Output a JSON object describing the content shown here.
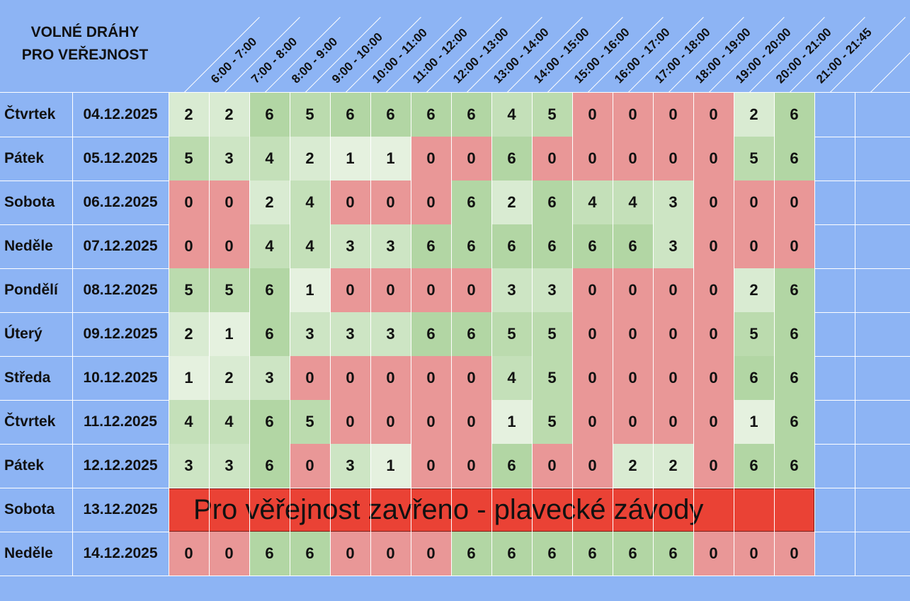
{
  "header": {
    "title_line1": "VOLNÉ DRÁHY",
    "title_line2": "PRO VEŘEJNOST"
  },
  "slots": [
    "6:00 - 7:00",
    "7:00 - 8:00",
    "8:00 - 9:00",
    "9:00 - 10:00",
    "10:00 - 11:00",
    "11:00 - 12:00",
    "12:00 - 13:00",
    "13:00 - 14:00",
    "14:00 - 15:00",
    "15:00 - 16:00",
    "16:00 - 17:00",
    "17:00 - 18:00",
    "18:00 - 19:00",
    "19:00 - 20:00",
    "20:00 - 21:00",
    "21:00 - 21:45"
  ],
  "colors": {
    "background": "#8db4f4",
    "zero": "#e99797",
    "level_1": "#e5f1df",
    "level_2": "#d9ebd2",
    "level_3": "#cde5c4",
    "level_4": "#c4e0b9",
    "level_5": "#bbdbae",
    "level_6": "#b2d6a4",
    "closed_banner": "#ea4235"
  },
  "rows": [
    {
      "day": "Čtvrtek",
      "date": "04.12.2025",
      "values": [
        2,
        2,
        6,
        5,
        6,
        6,
        6,
        6,
        4,
        5,
        0,
        0,
        0,
        0,
        2,
        6
      ]
    },
    {
      "day": "Pátek",
      "date": "05.12.2025",
      "values": [
        5,
        3,
        4,
        2,
        1,
        1,
        0,
        0,
        6,
        0,
        0,
        0,
        0,
        0,
        5,
        6
      ]
    },
    {
      "day": "Sobota",
      "date": "06.12.2025",
      "values": [
        0,
        0,
        2,
        4,
        0,
        0,
        0,
        6,
        2,
        6,
        4,
        4,
        3,
        0,
        0,
        0
      ]
    },
    {
      "day": "Neděle",
      "date": "07.12.2025",
      "values": [
        0,
        0,
        4,
        4,
        3,
        3,
        6,
        6,
        6,
        6,
        6,
        6,
        3,
        0,
        0,
        0
      ]
    },
    {
      "day": "Pondělí",
      "date": "08.12.2025",
      "values": [
        5,
        5,
        6,
        1,
        0,
        0,
        0,
        0,
        3,
        3,
        0,
        0,
        0,
        0,
        2,
        6
      ]
    },
    {
      "day": "Úterý",
      "date": "09.12.2025",
      "values": [
        2,
        1,
        6,
        3,
        3,
        3,
        6,
        6,
        5,
        5,
        0,
        0,
        0,
        0,
        5,
        6
      ]
    },
    {
      "day": "Středa",
      "date": "10.12.2025",
      "values": [
        1,
        2,
        3,
        0,
        0,
        0,
        0,
        0,
        4,
        5,
        0,
        0,
        0,
        0,
        6,
        6
      ]
    },
    {
      "day": "Čtvrtek",
      "date": "11.12.2025",
      "values": [
        4,
        4,
        6,
        5,
        0,
        0,
        0,
        0,
        1,
        5,
        0,
        0,
        0,
        0,
        1,
        6
      ]
    },
    {
      "day": "Pátek",
      "date": "12.12.2025",
      "values": [
        3,
        3,
        6,
        0,
        3,
        1,
        0,
        0,
        6,
        0,
        0,
        2,
        2,
        0,
        6,
        6
      ]
    },
    {
      "day": "Sobota",
      "date": "13.12.2025",
      "closed_text": "Pro věřejnost zavřeno - plavecké závody"
    },
    {
      "day": "Neděle",
      "date": "14.12.2025",
      "values": [
        0,
        0,
        6,
        6,
        0,
        0,
        0,
        6,
        6,
        6,
        6,
        6,
        6,
        0,
        0,
        0
      ]
    }
  ]
}
